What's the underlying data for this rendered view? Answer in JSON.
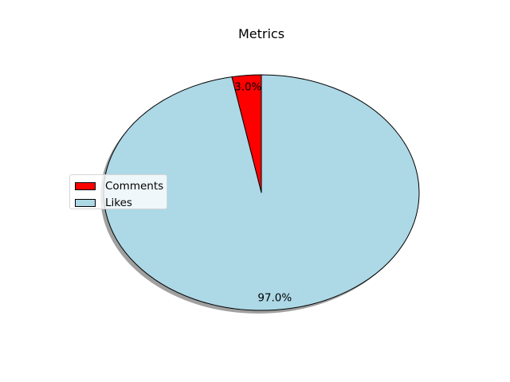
{
  "chart_data": {
    "type": "pie",
    "title": "Metrics",
    "slices": [
      {
        "label": "Comments",
        "value": 3.0,
        "pct_label": "3.0%",
        "color": "#ff0000"
      },
      {
        "label": "Likes",
        "value": 97.0,
        "pct_label": "97.0%",
        "color": "#add8e6"
      }
    ],
    "start_angle_deg": 90,
    "direction": "counterclockwise",
    "shadow": true,
    "legend_position": "center-left"
  }
}
